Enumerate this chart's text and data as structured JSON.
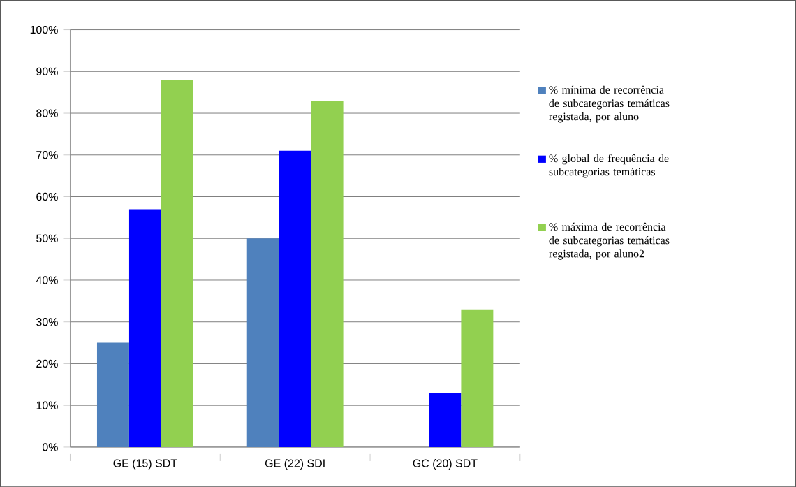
{
  "chart_data": {
    "type": "bar",
    "categories": [
      "GE (15) SDT",
      "GE (22) SDI",
      "GC (20) SDT"
    ],
    "series": [
      {
        "name": "% mínima de recorrência de subcategorias temáticas registada, por aluno",
        "color": "#4f81bd",
        "values": [
          25,
          50,
          0
        ]
      },
      {
        "name": "% global de frequência de subcategorias temáticas",
        "color": "#0000ff",
        "values": [
          57,
          71,
          13
        ]
      },
      {
        "name": "% máxima de recorrência de subcategorias temáticas registada, por aluno2",
        "color": "#92d050",
        "values": [
          88,
          83,
          33
        ]
      }
    ],
    "ylim": [
      0,
      100
    ],
    "yticks": [
      {
        "value": 0,
        "label": "0%"
      },
      {
        "value": 10,
        "label": "10%"
      },
      {
        "value": 20,
        "label": "20%"
      },
      {
        "value": 30,
        "label": "30%"
      },
      {
        "value": 40,
        "label": "40%"
      },
      {
        "value": 50,
        "label": "50%"
      },
      {
        "value": 60,
        "label": "60%"
      },
      {
        "value": 70,
        "label": "70%"
      },
      {
        "value": 80,
        "label": "80%"
      },
      {
        "value": 90,
        "label": "90%"
      },
      {
        "value": 100,
        "label": "100%"
      }
    ],
    "grid": "y",
    "legend": "right"
  }
}
